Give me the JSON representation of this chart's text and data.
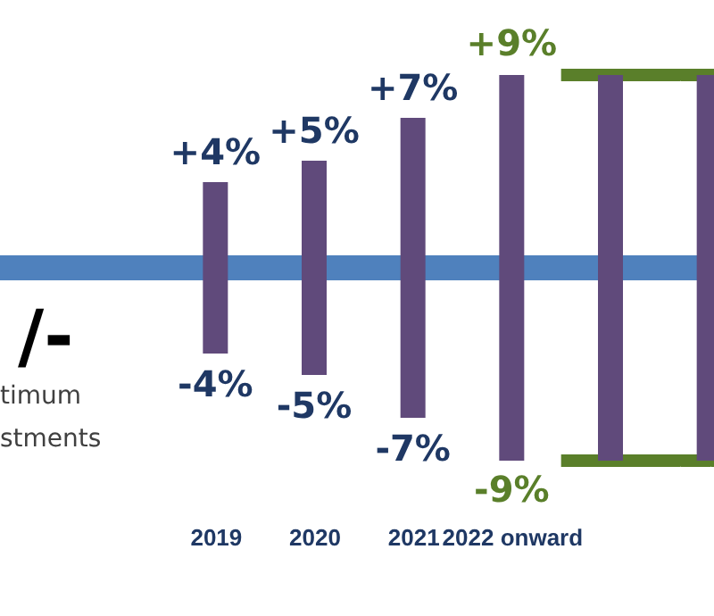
{
  "chart_data": {
    "type": "bar",
    "stacked": true,
    "categories": [
      "2019",
      "2020",
      "2021",
      "2022 onward",
      null,
      null
    ],
    "series": [
      {
        "color": "#604a7b",
        "values": [
          4,
          5,
          7,
          9,
          9,
          9
        ],
        "value_labels": [
          "+4%",
          "+5%",
          "+7%",
          null,
          null,
          null
        ]
      },
      {
        "color": "#604a7b",
        "values": [
          -4,
          -5,
          -7,
          -9,
          -9,
          -9
        ],
        "value_labels": [
          "-4%",
          "-5%",
          "-7%",
          null,
          null,
          null
        ]
      }
    ],
    "ref_lines": [
      {
        "axis": "y",
        "value": 0,
        "color": "#4f81bd"
      },
      {
        "axis": "y",
        "value": 9,
        "label": "+9%",
        "color": "#5a7f2a"
      },
      {
        "axis": "y",
        "value": -9,
        "label": "-9%",
        "color": "#5a7f2a"
      }
    ],
    "annotations": [
      "/-",
      "timum",
      "stments"
    ],
    "grid": false
  }
}
